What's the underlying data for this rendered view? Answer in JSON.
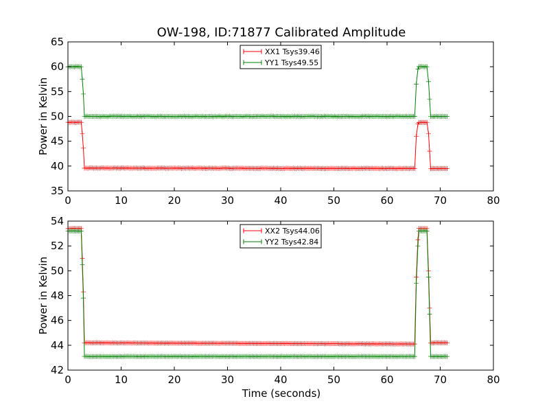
{
  "figure": {
    "title": "OW-198, ID:71877 Calibrated Amplitude",
    "xlabel": "Time (seconds)"
  },
  "chart_data": [
    {
      "type": "line",
      "title": "OW-198, ID:71877 Calibrated Amplitude",
      "xlabel": "",
      "ylabel": "Power in Kelvin",
      "xlim": [
        0,
        80
      ],
      "ylim": [
        35,
        65
      ],
      "xticks": [
        "0",
        "10",
        "20",
        "30",
        "40",
        "50",
        "60",
        "70",
        "80"
      ],
      "yticks": [
        "35",
        "40",
        "45",
        "50",
        "55",
        "60",
        "65"
      ],
      "grid": false,
      "legend": "top-center",
      "series": [
        {
          "name": "XX1 Tsys39.46",
          "color": "#ff0000",
          "marker": "plus",
          "x": [
            0,
            2.5,
            2.7,
            2.9,
            3.1,
            65.2,
            65.5,
            65.8,
            66.0,
            67.5,
            67.8,
            68.0,
            68.2,
            71.3
          ],
          "y": [
            48.8,
            48.8,
            46.5,
            43.6,
            39.6,
            39.5,
            46.0,
            48.5,
            48.8,
            48.8,
            46.5,
            43.0,
            39.5,
            39.5
          ]
        },
        {
          "name": "YY1 Tsys49.55",
          "color": "#008000",
          "marker": "plus",
          "x": [
            0,
            2.5,
            2.7,
            2.9,
            3.1,
            65.2,
            65.5,
            65.8,
            66.0,
            67.5,
            67.8,
            68.0,
            68.2,
            71.3
          ],
          "y": [
            60.0,
            60.0,
            57.5,
            54.5,
            50.0,
            50.0,
            56.5,
            59.5,
            60.0,
            60.0,
            57.0,
            53.5,
            50.0,
            50.0
          ]
        }
      ]
    },
    {
      "type": "line",
      "title": "",
      "xlabel": "Time (seconds)",
      "ylabel": "Power in Kelvin",
      "xlim": [
        0,
        80
      ],
      "ylim": [
        42,
        54
      ],
      "xticks": [
        "0",
        "10",
        "20",
        "30",
        "40",
        "50",
        "60",
        "70",
        "80"
      ],
      "yticks": [
        "42",
        "44",
        "46",
        "48",
        "50",
        "52",
        "54"
      ],
      "grid": false,
      "legend": "top-center",
      "series": [
        {
          "name": "XX2 Tsys44.06",
          "color": "#ff0000",
          "marker": "plus",
          "x": [
            0,
            2.5,
            2.7,
            2.9,
            3.1,
            65.2,
            65.5,
            65.8,
            66.0,
            67.5,
            67.8,
            68.0,
            68.2,
            71.3
          ],
          "y": [
            53.4,
            53.4,
            51.0,
            48.3,
            44.2,
            44.1,
            49.5,
            52.5,
            53.4,
            53.4,
            50.0,
            47.0,
            44.2,
            44.2
          ]
        },
        {
          "name": "YY2 Tsys42.84",
          "color": "#008000",
          "marker": "plus",
          "x": [
            0,
            2.5,
            2.7,
            2.9,
            3.1,
            65.2,
            65.5,
            65.8,
            66.0,
            67.5,
            67.8,
            68.0,
            68.2,
            71.3
          ],
          "y": [
            53.2,
            53.2,
            50.5,
            47.8,
            43.1,
            43.1,
            49.0,
            52.0,
            53.2,
            53.2,
            49.5,
            46.5,
            43.1,
            43.1
          ]
        }
      ]
    }
  ]
}
